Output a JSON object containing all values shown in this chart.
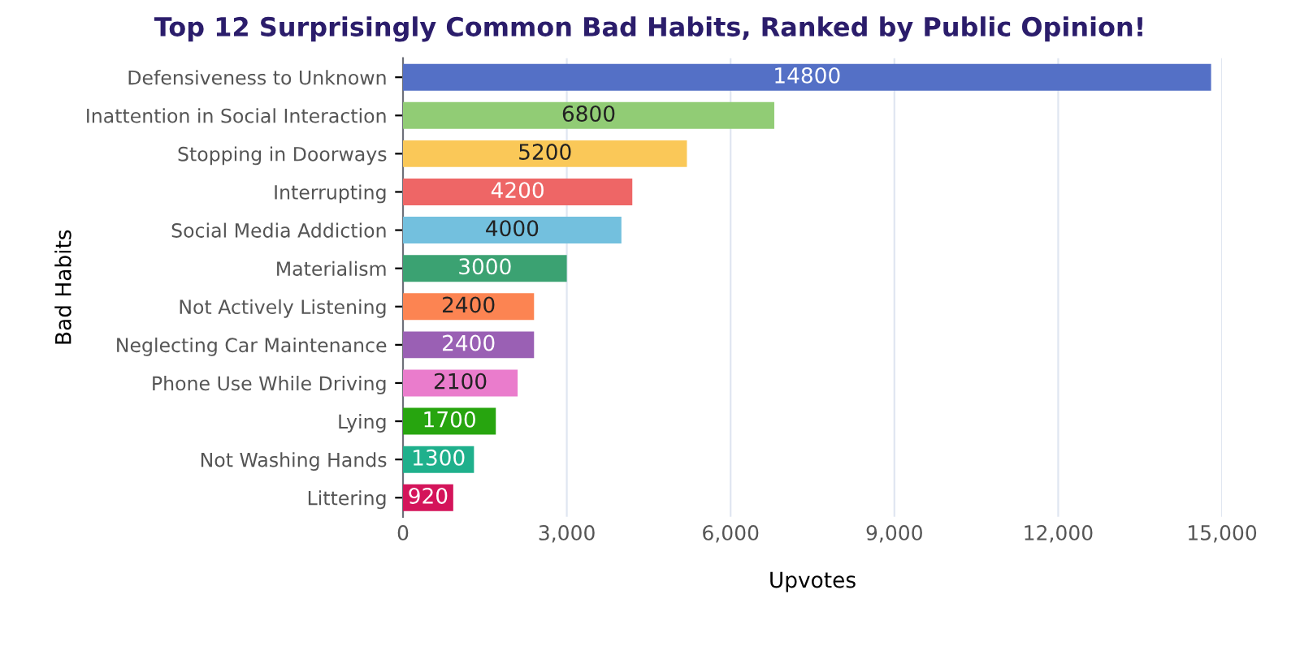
{
  "chart_data": {
    "type": "bar",
    "orientation": "horizontal",
    "title": "Top 12 Surprisingly Common Bad Habits, Ranked by Public Opinion!",
    "xlabel": "Upvotes",
    "ylabel": "Bad Habits",
    "categories": [
      "Defensiveness to Unknown",
      "Inattention in Social Interaction",
      "Stopping in Doorways",
      "Interrupting",
      "Social Media Addiction",
      "Materialism",
      "Not Actively Listening",
      "Neglecting Car Maintenance",
      "Phone Use While Driving",
      "Lying",
      "Not Washing Hands",
      "Littering"
    ],
    "values": [
      14800,
      6800,
      5200,
      4200,
      4000,
      3000,
      2400,
      2400,
      2100,
      1700,
      1300,
      920
    ],
    "colors": [
      "#5470c6",
      "#91cc75",
      "#fac858",
      "#ee6666",
      "#73c0de",
      "#3ba272",
      "#fc8452",
      "#9a60b4",
      "#ea7ccc",
      "#27a50f",
      "#1fb08c",
      "#d4145a"
    ],
    "xlim": [
      0,
      15000
    ],
    "xticks": [
      {
        "value": 0,
        "label": "0"
      },
      {
        "value": 3000,
        "label": "3,000"
      },
      {
        "value": 6000,
        "label": "6,000"
      },
      {
        "value": 9000,
        "label": "9,000"
      },
      {
        "value": 12000,
        "label": "12,000"
      },
      {
        "value": 15000,
        "label": "15,000"
      }
    ],
    "grid": "x",
    "data_labels": true,
    "legend": false
  }
}
